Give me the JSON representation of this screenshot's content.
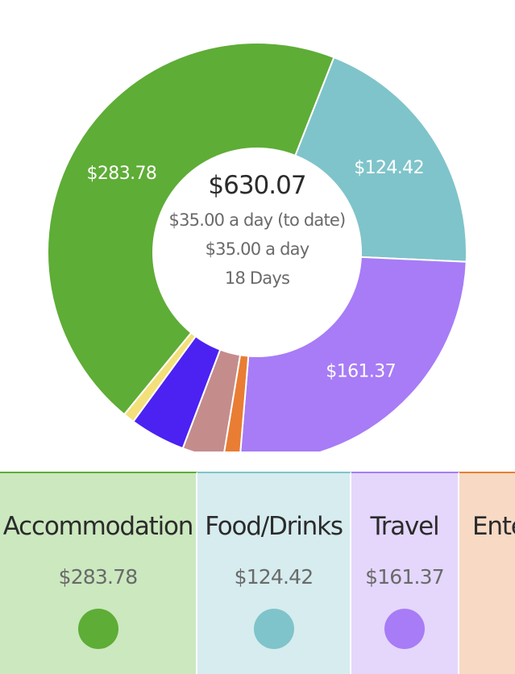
{
  "summary": {
    "total": "$630.07",
    "per_day_to_date": "$35.00 a day (to date)",
    "per_day": "$35.00 a day",
    "days": "18 Days"
  },
  "chart_data": {
    "type": "pie",
    "donut": true,
    "slices": [
      {
        "label": "Food/Drinks",
        "value": 124.42,
        "color": "#7fc4ca",
        "value_label": "$124.42"
      },
      {
        "label": "Travel",
        "value": 161.37,
        "color": "#a77cf6",
        "value_label": "$161.37"
      },
      {
        "label": "Entertainment",
        "value": 8.0,
        "color": "#e97d34",
        "value_label": ""
      },
      {
        "label": "",
        "value": 20.0,
        "color": "#c58c8c",
        "value_label": ""
      },
      {
        "label": "",
        "value": 27.0,
        "color": "#4b22f2",
        "value_label": ""
      },
      {
        "label": "",
        "value": 5.5,
        "color": "#f3e07a",
        "value_label": ""
      },
      {
        "label": "Accommodation",
        "value": 283.78,
        "color": "#5ead36",
        "value_label": "$283.78"
      }
    ]
  },
  "categories": [
    {
      "name": "Accommodation",
      "amount": "$283.78",
      "color": "#5ead36",
      "bg": "#cbe8bf"
    },
    {
      "name": "Food/Drinks",
      "amount": "$124.42",
      "color": "#7fc4ca",
      "bg": "#d6ecef"
    },
    {
      "name": "Travel",
      "amount": "$161.37",
      "color": "#a77cf6",
      "bg": "#e4d7fb"
    },
    {
      "name": "Ente",
      "amount": "",
      "color": "#e97d34",
      "bg": "#f7d9c4"
    }
  ]
}
